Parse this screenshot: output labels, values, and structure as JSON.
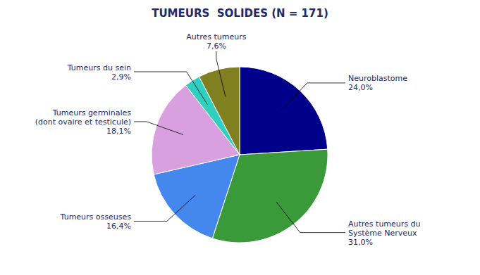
{
  "chart_data": {
    "type": "pie",
    "title": "TUMEURS  SOLIDES (N = 171)",
    "categories": [
      "Neuroblastome",
      "Autres tumeurs du\nSystème Nerveux",
      "Tumeurs osseuses",
      "Tumeurs germinales\n(dont ovaire et testicule)",
      "Tumeurs du sein",
      "Autres tumeurs"
    ],
    "values": [
      24.0,
      31.0,
      16.4,
      18.1,
      2.9,
      7.6
    ],
    "value_labels": [
      "24,0%",
      "31,0%",
      "16,4%",
      "18,1%",
      "2,9%",
      "7,6%"
    ],
    "colors": [
      "#00008B",
      "#3A9A3A",
      "#4488EE",
      "#D9A0E0",
      "#30D0C0",
      "#808020"
    ],
    "data_labels": true
  }
}
